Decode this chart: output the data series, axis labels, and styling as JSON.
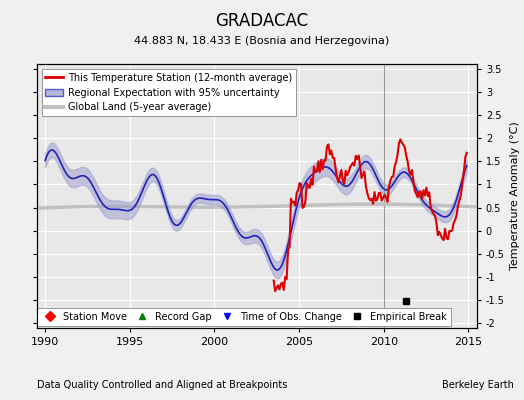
{
  "title": "GRADACAC",
  "subtitle": "44.883 N, 18.433 E (Bosnia and Herzegovina)",
  "xlabel_bottom": "Data Quality Controlled and Aligned at Breakpoints",
  "xlabel_right": "Berkeley Earth",
  "ylabel": "Temperature Anomaly (°C)",
  "xlim": [
    1989.5,
    2015.5
  ],
  "ylim": [
    -2.1,
    3.6
  ],
  "yticks": [
    -2,
    -1.5,
    -1,
    -0.5,
    0,
    0.5,
    1,
    1.5,
    2,
    2.5,
    3,
    3.5
  ],
  "xticks": [
    1990,
    1995,
    2000,
    2005,
    2010,
    2015
  ],
  "bg_color": "#e8e8e8",
  "grid_color": "white",
  "station_color": "#dd0000",
  "regional_color": "#2222bb",
  "regional_fill_color": "#9999cc",
  "global_color": "#c0c0c0",
  "empirical_break_x": 2011.3,
  "empirical_break_y": -1.52,
  "legend_items": [
    {
      "label": "This Temperature Station (12-month average)",
      "color": "#dd0000",
      "lw": 2
    },
    {
      "label": "Regional Expectation with 95% uncertainty",
      "color": "#2222bb",
      "lw": 2
    },
    {
      "label": "Global Land (5-year average)",
      "color": "#c0c0c0",
      "lw": 3
    }
  ],
  "bottom_legend": [
    {
      "label": "Station Move",
      "marker": "D",
      "color": "red"
    },
    {
      "label": "Record Gap",
      "marker": "^",
      "color": "green"
    },
    {
      "label": "Time of Obs. Change",
      "marker": "v",
      "color": "blue"
    },
    {
      "label": "Empirical Break",
      "marker": "s",
      "color": "black"
    }
  ]
}
